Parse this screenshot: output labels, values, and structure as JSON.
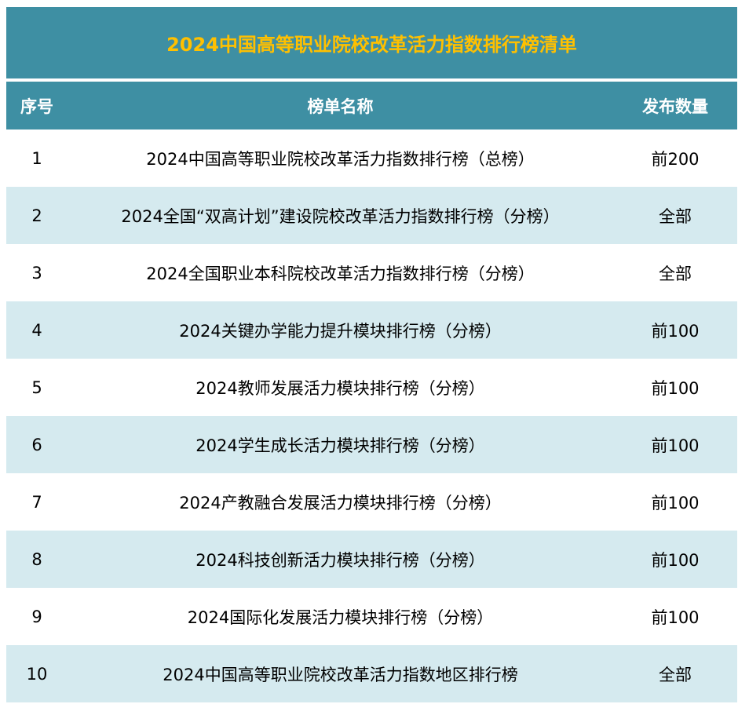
{
  "title": "2024中国高等职业院校改革活力指数排行榜清单",
  "colors": {
    "header_bg": "#3e8fa3",
    "title_text": "#ffc000",
    "stripe": "#d5eaef"
  },
  "headers": [
    "序号",
    "榜单名称",
    "发布数量"
  ],
  "rows": [
    [
      "1",
      "2024中国高等职业院校改革活力指数排行榜（总榜）",
      "前200"
    ],
    [
      "2",
      "2024全国“双高计划”建设院校改革活力指数排行榜（分榜）",
      "全部"
    ],
    [
      "3",
      "2024全国职业本科院校改革活力指数排行榜（分榜）",
      "全部"
    ],
    [
      "4",
      "2024关键办学能力提升模块排行榜（分榜）",
      "前100"
    ],
    [
      "5",
      "2024教师发展活力模块排行榜（分榜）",
      "前100"
    ],
    [
      "6",
      "2024学生成长活力模块排行榜（分榜）",
      "前100"
    ],
    [
      "7",
      "2024产教融合发展活力模块排行榜（分榜）",
      "前100"
    ],
    [
      "8",
      "2024科技创新活力模块排行榜（分榜）",
      "前100"
    ],
    [
      "9",
      "2024国际化发展活力模块排行榜（分榜）",
      "前100"
    ],
    [
      "10",
      "2024中国高等职业院校改革活力指数地区排行榜",
      "全部"
    ]
  ]
}
